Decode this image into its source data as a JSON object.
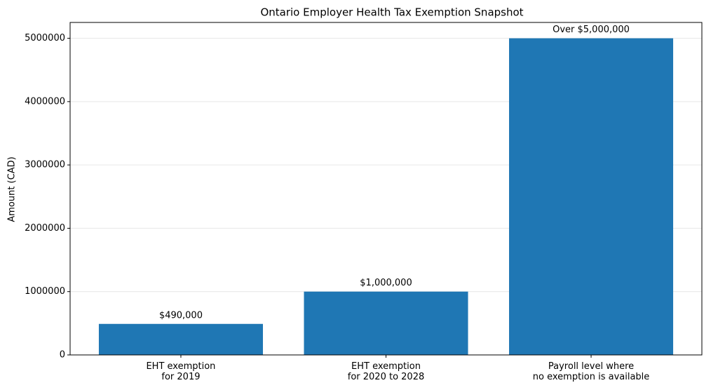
{
  "chart_data": {
    "type": "bar",
    "title": "Ontario Employer Health Tax Exemption Snapshot",
    "y_label": "Amount (CAD)",
    "categories": [
      "EHT exemption\nfor 2019",
      "EHT exemption\nfor 2020 to 2028",
      "Payroll level where\nno exemption is available"
    ],
    "values": [
      490000,
      1000000,
      5000000
    ],
    "value_labels": [
      "$490,000",
      "$1,000,000",
      "Over $5,000,000"
    ],
    "color": "#1f77b4",
    "ylim": [
      0,
      5250000
    ],
    "yticks": [
      0,
      1000000,
      2000000,
      3000000,
      4000000,
      5000000
    ],
    "grid": true
  }
}
